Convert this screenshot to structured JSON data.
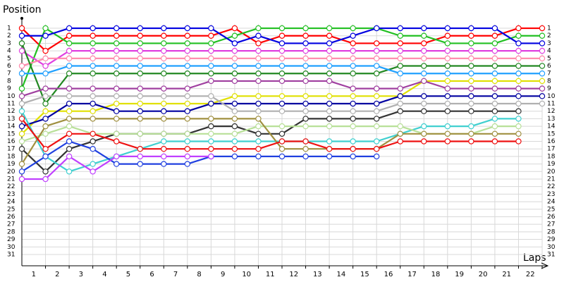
{
  "chart_data": {
    "type": "lap",
    "y_axis_label": "Position",
    "x_axis_label": "Laps",
    "x": [
      0,
      1,
      2,
      3,
      4,
      5,
      6,
      7,
      8,
      9,
      10,
      11,
      12,
      13,
      14,
      15,
      16,
      17,
      18,
      19,
      20,
      21,
      22
    ],
    "xticks": [
      1,
      2,
      3,
      4,
      5,
      6,
      7,
      8,
      9,
      10,
      11,
      12,
      13,
      14,
      15,
      16,
      17,
      18,
      19,
      20,
      21,
      22
    ],
    "xlim": [
      0,
      22
    ],
    "ylim": [
      32.5,
      -0.5
    ],
    "yticks": [
      1,
      2,
      3,
      4,
      5,
      6,
      7,
      8,
      9,
      10,
      11,
      12,
      13,
      14,
      15,
      16,
      17,
      18,
      19,
      20,
      21,
      22,
      23,
      24,
      25,
      26,
      27,
      28,
      29,
      30,
      31
    ],
    "grid": true,
    "series": [
      {
        "color": "#ff0000",
        "values": [
          1,
          4,
          2,
          2,
          2,
          2,
          2,
          2,
          2,
          1,
          3,
          2,
          2,
          2,
          3,
          3,
          3,
          3,
          2,
          2,
          2,
          1,
          1
        ]
      },
      {
        "color": "#22c022",
        "values": [
          9,
          1,
          3,
          3,
          3,
          3,
          3,
          3,
          3,
          2,
          1,
          1,
          1,
          1,
          1,
          1,
          2,
          2,
          3,
          3,
          3,
          2,
          2
        ]
      },
      {
        "color": "#0000e0",
        "values": [
          2,
          2,
          1,
          1,
          1,
          1,
          1,
          1,
          1,
          3,
          2,
          3,
          3,
          3,
          2,
          1,
          1,
          1,
          1,
          1,
          1,
          3,
          3
        ]
      },
      {
        "color": "#e040e0",
        "values": [
          4,
          6,
          4,
          4,
          4,
          4,
          4,
          4,
          4,
          4,
          4,
          4,
          4,
          4,
          4,
          4,
          4,
          4,
          4,
          4,
          4,
          4,
          4
        ]
      },
      {
        "color": "#ff88aa",
        "values": [
          6,
          5,
          5,
          5,
          5,
          5,
          5,
          5,
          5,
          5,
          5,
          5,
          5,
          5,
          5,
          5,
          5,
          5,
          5,
          5,
          5,
          5,
          5
        ]
      },
      {
        "color": "#228822",
        "values": [
          3,
          11,
          7,
          7,
          7,
          7,
          7,
          7,
          7,
          7,
          7,
          7,
          7,
          7,
          7,
          7,
          6,
          6,
          6,
          6,
          6,
          6,
          6
        ]
      },
      {
        "color": "#20a0ff",
        "values": [
          7,
          7,
          6,
          6,
          6,
          6,
          6,
          6,
          6,
          6,
          6,
          6,
          6,
          6,
          6,
          6,
          7,
          7,
          7,
          7,
          7,
          7,
          7
        ]
      },
      {
        "color": "#e0e000",
        "values": [
          15,
          12,
          12,
          12,
          11,
          11,
          11,
          11,
          11,
          10,
          10,
          10,
          10,
          10,
          10,
          10,
          10,
          8,
          8,
          8,
          8,
          8,
          8
        ]
      },
      {
        "color": "#a040a0",
        "values": [
          10,
          9,
          9,
          9,
          9,
          9,
          9,
          9,
          8,
          8,
          8,
          8,
          8,
          8,
          9,
          9,
          9,
          8,
          9,
          9,
          9,
          9,
          9
        ]
      },
      {
        "color": "#0000a0",
        "values": [
          14,
          13,
          11,
          11,
          12,
          12,
          12,
          12,
          11,
          11,
          11,
          11,
          11,
          11,
          11,
          11,
          10,
          10,
          10,
          10,
          10,
          10,
          10
        ]
      },
      {
        "color": "#b0b0b0",
        "values": [
          11,
          10,
          10,
          10,
          10,
          10,
          10,
          10,
          10,
          12,
          12,
          12,
          12,
          12,
          12,
          12,
          11,
          11,
          11,
          11,
          11,
          11,
          11
        ]
      },
      {
        "color": "#333333",
        "values": [
          17,
          20,
          17,
          16,
          15,
          15,
          15,
          15,
          14,
          14,
          15,
          15,
          13,
          13,
          13,
          13,
          12,
          12,
          12,
          12,
          12,
          12,
          null
        ]
      },
      {
        "color": "#40d0d0",
        "values": [
          12,
          18,
          20,
          19,
          18,
          17,
          16,
          16,
          16,
          16,
          16,
          16,
          16,
          16,
          16,
          16,
          15,
          14,
          14,
          14,
          13,
          13,
          null
        ]
      },
      {
        "color": "#b8e098",
        "values": [
          16,
          15,
          14,
          15,
          15,
          15,
          15,
          15,
          15,
          15,
          14,
          14,
          14,
          14,
          14,
          14,
          14,
          15,
          15,
          15,
          14,
          14,
          null
        ]
      },
      {
        "color": "#a09040",
        "values": [
          19,
          14,
          13,
          13,
          13,
          13,
          13,
          13,
          13,
          13,
          13,
          17,
          17,
          17,
          17,
          17,
          15,
          15,
          15,
          15,
          15,
          15,
          null
        ]
      },
      {
        "color": "#ee1111",
        "values": [
          13,
          17,
          15,
          15,
          16,
          17,
          17,
          17,
          17,
          17,
          17,
          16,
          16,
          17,
          17,
          17,
          16,
          16,
          16,
          16,
          16,
          16,
          null
        ]
      },
      {
        "color": "#2040e0",
        "values": [
          20,
          18,
          16,
          17,
          19,
          19,
          19,
          19,
          18,
          18,
          18,
          18,
          18,
          18,
          18,
          18,
          null,
          null,
          null,
          null,
          null,
          null,
          null
        ]
      },
      {
        "color": "#c040ff",
        "values": [
          21,
          21,
          18,
          20,
          18,
          18,
          18,
          18,
          18,
          null,
          null,
          null,
          null,
          null,
          null,
          null,
          null,
          null,
          null,
          null,
          null,
          null,
          null
        ]
      }
    ]
  }
}
